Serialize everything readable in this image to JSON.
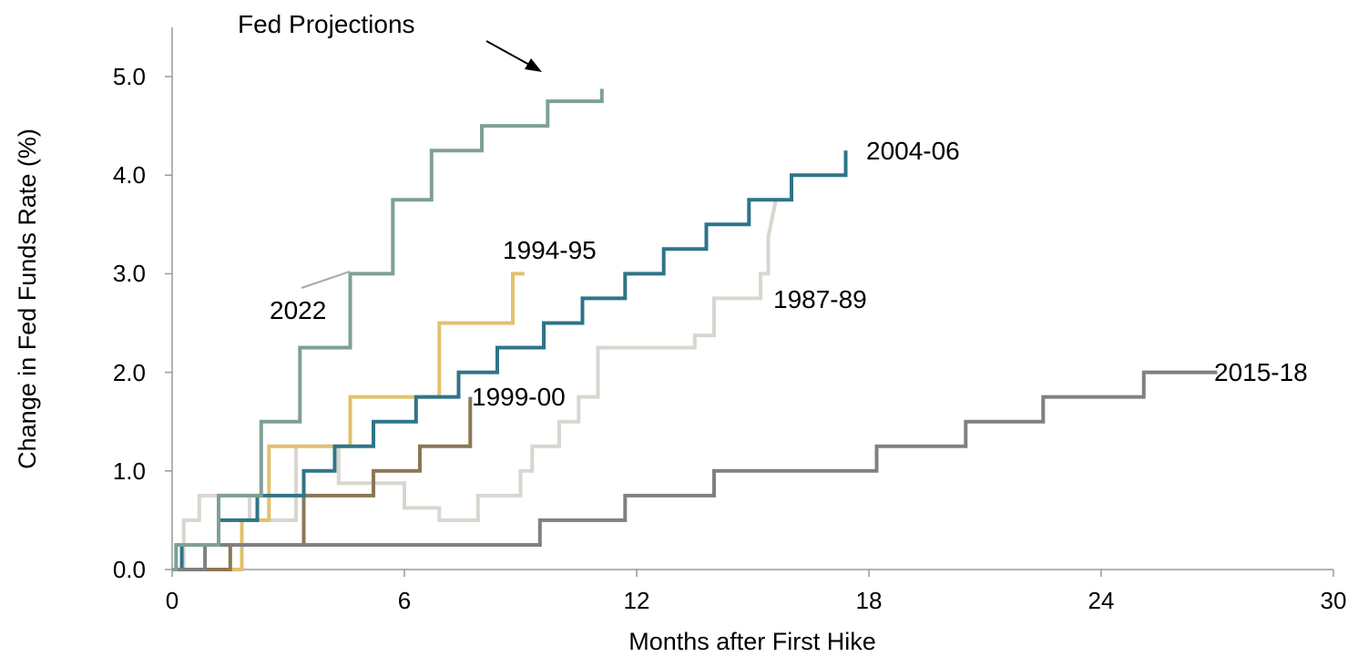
{
  "chart_data": {
    "type": "line",
    "xlabel": "Months after First Hike",
    "ylabel": "Change in Fed Funds Rate (%)",
    "xlim": [
      0,
      30
    ],
    "ylim": [
      0,
      5.5
    ],
    "xticks": [
      "0",
      "6",
      "12",
      "18",
      "24",
      "30"
    ],
    "yticks": [
      "0.0",
      "1.0",
      "2.0",
      "3.0",
      "4.0",
      "5.0"
    ],
    "grid": false,
    "annotation": "Fed Projections",
    "series": [
      {
        "name": "1987-89",
        "color": "#d9d6cf",
        "x": [
          0,
          0.3,
          0.3,
          0.7,
          0.7,
          2.0,
          2.0,
          3.2,
          3.2,
          4.3,
          4.3,
          6.0,
          6.0,
          6.9,
          6.9,
          7.9,
          7.9,
          9.0,
          9.0,
          9.3,
          9.3,
          10.0,
          10.0,
          10.5,
          10.5,
          11.0,
          11.0,
          13.5,
          13.5,
          14.0,
          14.0,
          15.2,
          15.2,
          15.4,
          15.4,
          15.6
        ],
        "y": [
          0,
          0,
          0.5,
          0.5,
          0.75,
          0.75,
          0.5,
          0.5,
          1.25,
          1.25,
          0.875,
          0.875,
          0.625,
          0.625,
          0.5,
          0.5,
          0.75,
          0.75,
          1.0,
          1.0,
          1.25,
          1.25,
          1.5,
          1.5,
          1.75,
          1.75,
          2.25,
          2.25,
          2.375,
          2.375,
          2.75,
          2.75,
          3.0,
          3.0,
          3.375,
          3.75
        ]
      },
      {
        "name": "1994-95",
        "color": "#e2c16e",
        "x": [
          0,
          1.8,
          1.8,
          2.5,
          2.5,
          4.6,
          4.6,
          6.9,
          6.9,
          8.8,
          8.8,
          9.1
        ],
        "y": [
          0,
          0,
          0.5,
          0.5,
          1.25,
          1.25,
          1.75,
          1.75,
          2.5,
          2.5,
          3.0,
          3.0
        ]
      },
      {
        "name": "1999-00",
        "color": "#8b7755",
        "x": [
          0,
          1.5,
          1.5,
          3.4,
          3.4,
          5.2,
          5.2,
          6.4,
          6.4,
          7.7,
          7.7
        ],
        "y": [
          0,
          0,
          0.25,
          0.25,
          0.75,
          0.75,
          1.0,
          1.0,
          1.25,
          1.25,
          1.75
        ]
      },
      {
        "name": "2004-06",
        "color": "#2f7488",
        "x": [
          0,
          0.25,
          0.25,
          1.2,
          1.2,
          2.2,
          2.2,
          3.4,
          3.4,
          4.2,
          4.2,
          5.2,
          5.2,
          6.3,
          6.3,
          7.4,
          7.4,
          8.4,
          8.4,
          9.6,
          9.6,
          10.6,
          10.6,
          11.7,
          11.7,
          12.7,
          12.7,
          13.8,
          13.8,
          14.9,
          14.9,
          16.0,
          16.0,
          17.4,
          17.4
        ],
        "y": [
          0,
          0,
          0.25,
          0.25,
          0.5,
          0.5,
          0.75,
          0.75,
          1.0,
          1.0,
          1.25,
          1.25,
          1.5,
          1.5,
          1.75,
          1.75,
          2.0,
          2.0,
          2.25,
          2.25,
          2.5,
          2.5,
          2.75,
          2.75,
          3.0,
          3.0,
          3.25,
          3.25,
          3.5,
          3.5,
          3.75,
          3.75,
          4.0,
          4.0,
          4.25
        ]
      },
      {
        "name": "2015-18",
        "color": "#808080",
        "x": [
          0,
          0.85,
          0.85,
          9.5,
          9.5,
          11.7,
          11.7,
          14.0,
          14.0,
          18.2,
          18.2,
          20.5,
          20.5,
          22.5,
          22.5,
          25.1,
          25.1,
          27.0
        ],
        "y": [
          0,
          0,
          0.25,
          0.25,
          0.5,
          0.5,
          0.75,
          0.75,
          1.0,
          1.0,
          1.25,
          1.25,
          1.5,
          1.5,
          1.75,
          1.75,
          2.0,
          2.0
        ]
      },
      {
        "name": "2022",
        "color": "#7ea096",
        "x": [
          0,
          0.1,
          0.1,
          1.2,
          1.2,
          2.3,
          2.3,
          3.3,
          3.3,
          4.6,
          4.6,
          5.7,
          5.7,
          6.7,
          6.7,
          8.0,
          8.0,
          9.7,
          9.7,
          11.1,
          11.1
        ],
        "y": [
          0,
          0,
          0.25,
          0.25,
          0.75,
          0.75,
          1.5,
          1.5,
          2.25,
          2.25,
          3.0,
          3.0,
          3.75,
          3.75,
          4.25,
          4.25,
          4.5,
          4.5,
          4.75,
          4.75,
          4.875
        ]
      }
    ]
  }
}
